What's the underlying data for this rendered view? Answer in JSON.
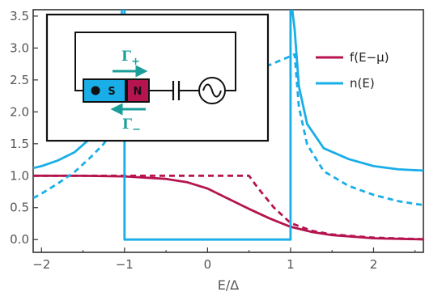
{
  "chart_data": {
    "type": "line",
    "xlabel": "E/Δ",
    "ylabel": "",
    "xlim": [
      -2.1,
      2.6
    ],
    "ylim": [
      -0.2,
      3.6
    ],
    "x_ticks": [
      -2,
      -1,
      0,
      1,
      2
    ],
    "x_tick_labels": [
      "−2",
      "−1",
      "0",
      "1",
      "2"
    ],
    "y_ticks": [
      0,
      0.5,
      1,
      1.5,
      2,
      2.5,
      3,
      3.5
    ],
    "y_tick_labels": [
      "0.0",
      "0.5",
      "1.0",
      "1.5",
      "2.0",
      "2.5",
      "3.0",
      "3.5"
    ],
    "frame": true,
    "grid": false,
    "legend_position": "top-right",
    "series": [
      {
        "name": "f(E−μ)",
        "color": "#b5144f",
        "style": "solid",
        "x": [
          -2.1,
          -1.5,
          -1.0,
          -0.5,
          -0.25,
          0,
          0.25,
          0.5,
          0.75,
          1.0,
          1.25,
          1.5,
          2.0,
          2.6
        ],
        "y": [
          1.0,
          0.998,
          0.99,
          0.95,
          0.9,
          0.8,
          0.64,
          0.48,
          0.33,
          0.2,
          0.12,
          0.07,
          0.02,
          0.003
        ]
      },
      {
        "name": "",
        "color": "#b5144f",
        "style": "dashed",
        "x": [
          -2.1,
          -1.0,
          0.0,
          0.5,
          0.5,
          0.6,
          0.8,
          1.0,
          1.25,
          1.5,
          2.0,
          2.6
        ],
        "y": [
          1.0,
          1.0,
          1.0,
          1.0,
          1.0,
          0.82,
          0.5,
          0.26,
          0.14,
          0.08,
          0.03,
          0.005
        ]
      },
      {
        "name": "n(E)",
        "color": "#1aaee8",
        "style": "solid",
        "x": [
          -2.1,
          -2.0,
          -1.8,
          -1.6,
          -1.4,
          -1.25,
          -1.15,
          -1.08,
          -1.03,
          -1.0,
          -1.0,
          1.0,
          1.0,
          1.02,
          1.05,
          1.1,
          1.2,
          1.4,
          1.7,
          2.0,
          2.3,
          2.6
        ],
        "y": [
          1.12,
          1.15,
          1.24,
          1.37,
          1.6,
          1.86,
          2.28,
          2.6,
          3.6,
          3.6,
          0.0,
          0.0,
          3.6,
          3.6,
          3.29,
          2.4,
          1.81,
          1.43,
          1.26,
          1.15,
          1.1,
          1.08
        ]
      },
      {
        "name": "",
        "color": "#1aaee8",
        "style": "dashed",
        "x": [
          -2.1,
          -2.0,
          -1.8,
          -1.6,
          -1.4,
          -1.25,
          -1.15,
          1.05,
          1.1,
          1.2,
          1.4,
          1.7,
          2.0,
          2.3,
          2.6
        ],
        "y": [
          0.65,
          0.72,
          0.88,
          1.06,
          1.3,
          1.5,
          1.7,
          2.9,
          2.08,
          1.49,
          1.07,
          0.84,
          0.7,
          0.6,
          0.54
        ]
      }
    ]
  },
  "inset": {
    "superconductor_label": "S",
    "normal_label": "N",
    "rate_plus_label": "Γ+",
    "rate_minus_label": "Γ−",
    "colors": {
      "superconductor": "#1aaee8",
      "normal": "#b5144f",
      "arrows": "#1a9e9a"
    }
  }
}
